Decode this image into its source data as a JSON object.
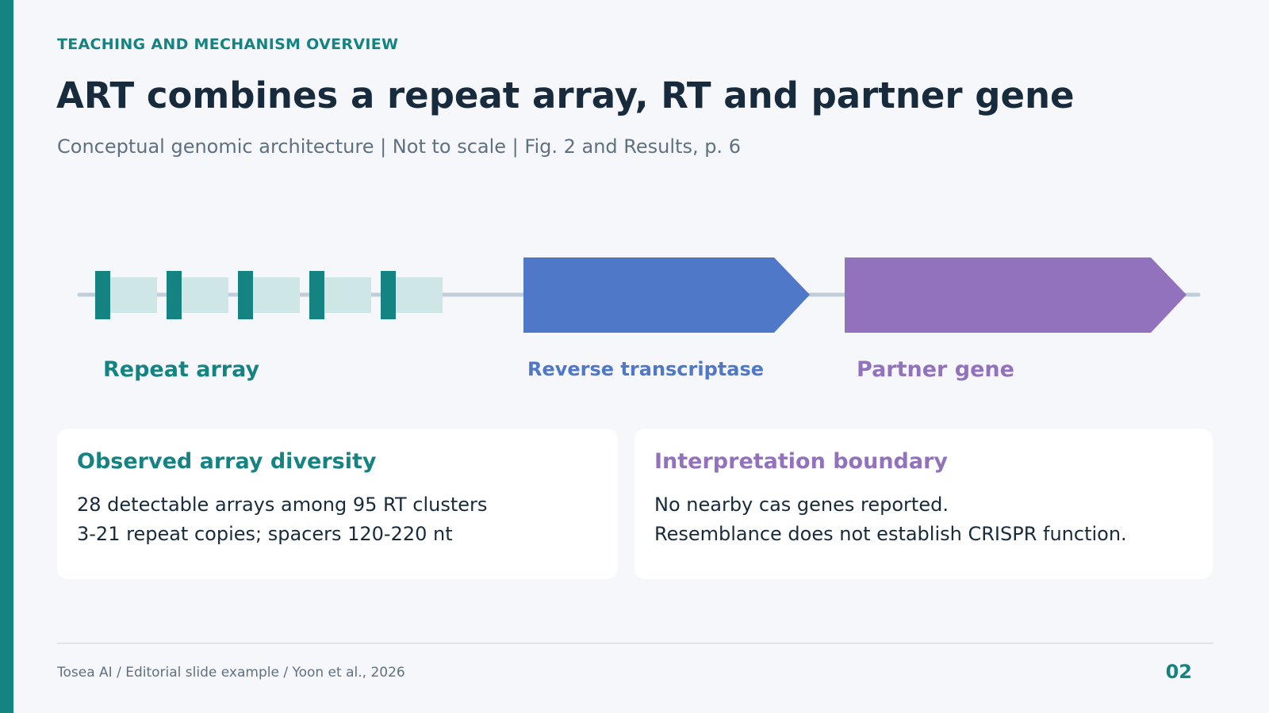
{
  "colors": {
    "accent": "#168383",
    "repeat_block": "#168383",
    "spacer_block": "#cfe6e6",
    "reverse_transcriptase": "#4f78c9",
    "partner_gene": "#9372bd",
    "backbone": "#c0ceda",
    "title_text": "#172b3d",
    "muted_text": "#5f7080"
  },
  "header": {
    "eyebrow": "TEACHING AND MECHANISM OVERVIEW",
    "title": "ART combines a repeat array, RT and partner gene",
    "subtitle": "Conceptual genomic architecture  |  Not to scale  |  Fig. 2 and Results, p. 6"
  },
  "diagram": {
    "repeat_units": 5,
    "labels": {
      "repeat_array": "Repeat array",
      "reverse_transcriptase": "Reverse transcriptase",
      "partner_gene": "Partner gene"
    }
  },
  "cards": {
    "left": {
      "title": "Observed array diversity",
      "lines": [
        "28 detectable arrays among 95 RT clusters",
        "3-21 repeat copies; spacers 120-220 nt"
      ]
    },
    "right": {
      "title": "Interpretation boundary",
      "lines": [
        "No nearby cas genes reported.",
        "Resemblance does not establish CRISPR function."
      ]
    }
  },
  "footer": {
    "source": "Tosea AI  /  Editorial slide example  /  Yoon et al., 2026",
    "page": "02"
  }
}
